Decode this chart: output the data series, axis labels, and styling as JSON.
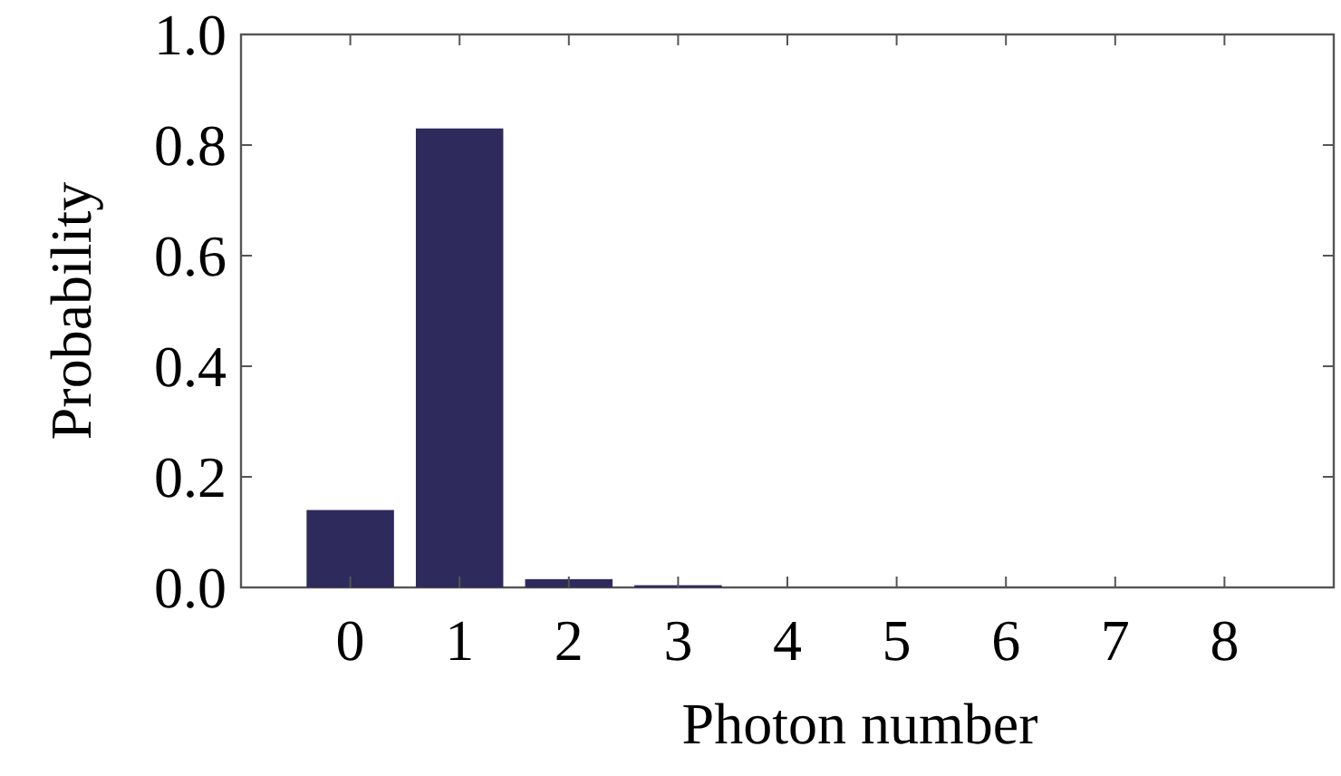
{
  "chart_data": {
    "type": "bar",
    "xlabel": "Photon number",
    "ylabel": "Probability",
    "categories": [
      "0",
      "1",
      "2",
      "3",
      "4",
      "5",
      "6",
      "7",
      "8"
    ],
    "values": [
      0.14,
      0.83,
      0.015,
      0.004,
      0,
      0,
      0,
      0,
      0
    ],
    "color": "#2e2a5c",
    "ylim": [
      0,
      1.0
    ],
    "yticks": [
      {
        "value": 0,
        "label": "0.0"
      },
      {
        "value": 0.2,
        "label": "0.2"
      },
      {
        "value": 0.4,
        "label": "0.4"
      },
      {
        "value": 0.6,
        "label": "0.6"
      },
      {
        "value": 0.8,
        "label": "0.8"
      },
      {
        "value": 1.0,
        "label": "1.0"
      }
    ],
    "grid": false
  }
}
